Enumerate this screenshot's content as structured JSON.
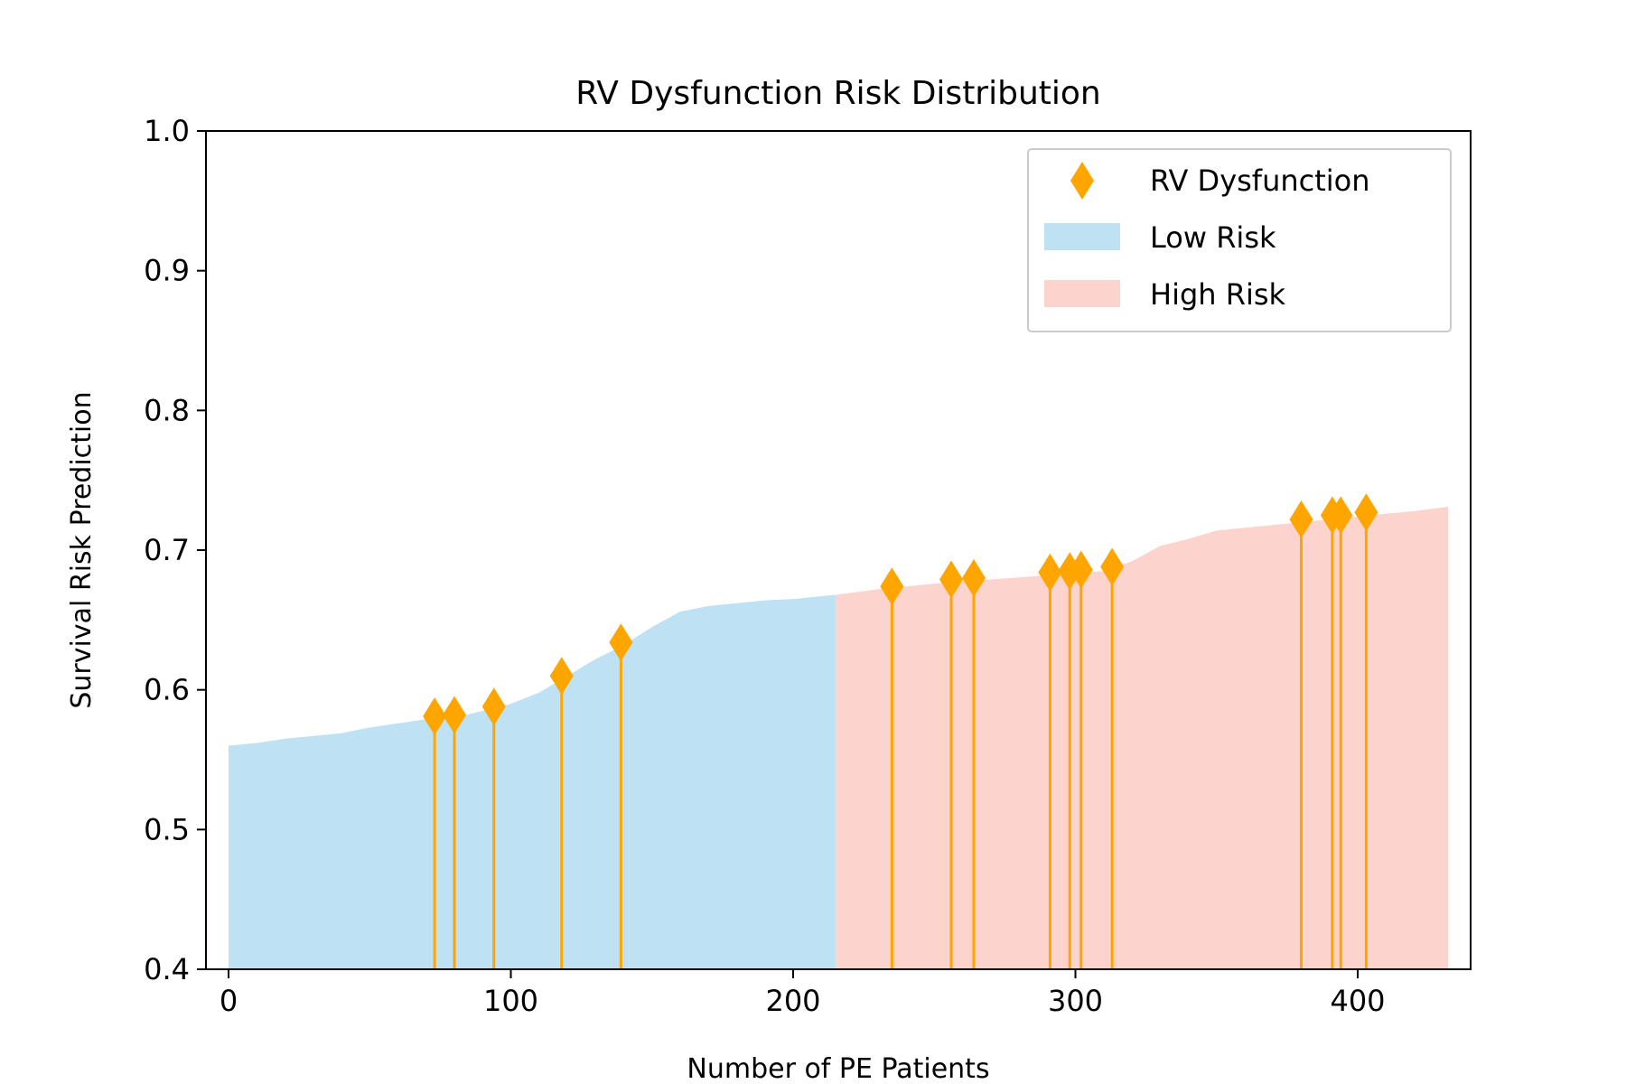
{
  "chart_data": {
    "type": "area",
    "title": "RV Dysfunction Risk Distribution",
    "xlabel": "Number of PE Patients",
    "ylabel": "Survival Risk Prediction",
    "xlim": [
      -8,
      440
    ],
    "ylim": [
      0.4,
      1.0
    ],
    "xticks": [
      0,
      100,
      200,
      300,
      400
    ],
    "xtick_labels": [
      "0",
      "100",
      "200",
      "300",
      "400"
    ],
    "yticks": [
      0.4,
      0.5,
      0.6,
      0.7,
      0.8,
      0.9,
      1.0
    ],
    "ytick_labels": [
      "0.4",
      "0.5",
      "0.6",
      "0.7",
      "0.8",
      "0.9",
      "1.0"
    ],
    "grid": false,
    "legend_position": "top-right",
    "legend": [
      {
        "label": "RV Dysfunction",
        "kind": "marker",
        "color": "#FFA500"
      },
      {
        "label": "Low Risk",
        "kind": "patch",
        "color": "#BEE2F4"
      },
      {
        "label": "High Risk",
        "kind": "patch",
        "color": "#FDD3CE"
      }
    ],
    "risk_curve": {
      "x": [
        0,
        10,
        20,
        30,
        40,
        50,
        60,
        70,
        80,
        90,
        100,
        110,
        120,
        130,
        140,
        150,
        160,
        170,
        180,
        190,
        200,
        210,
        215,
        230,
        250,
        270,
        290,
        310,
        320,
        330,
        340,
        350,
        360,
        370,
        380,
        390,
        400,
        410,
        420,
        432
      ],
      "y": [
        0.56,
        0.562,
        0.565,
        0.567,
        0.569,
        0.573,
        0.576,
        0.579,
        0.58,
        0.585,
        0.59,
        0.598,
        0.61,
        0.622,
        0.632,
        0.645,
        0.656,
        0.66,
        0.662,
        0.664,
        0.665,
        0.667,
        0.668,
        0.672,
        0.676,
        0.679,
        0.682,
        0.685,
        0.692,
        0.703,
        0.708,
        0.714,
        0.716,
        0.718,
        0.72,
        0.722,
        0.724,
        0.726,
        0.728,
        0.731
      ]
    },
    "split_x": 215,
    "series": [
      {
        "name": "RV Dysfunction",
        "color": "#FFA500",
        "x": [
          73,
          80,
          94,
          118,
          139,
          235,
          256,
          264,
          291,
          298,
          302,
          313,
          380,
          391,
          394,
          403
        ],
        "y": [
          0.581,
          0.582,
          0.588,
          0.61,
          0.634,
          0.674,
          0.679,
          0.68,
          0.684,
          0.685,
          0.686,
          0.688,
          0.722,
          0.725,
          0.725,
          0.727
        ]
      }
    ],
    "colors": {
      "low_risk": "#BEE2F4",
      "high_risk": "#FDD3CE",
      "marker": "#FFA500",
      "axis": "#000000"
    }
  }
}
